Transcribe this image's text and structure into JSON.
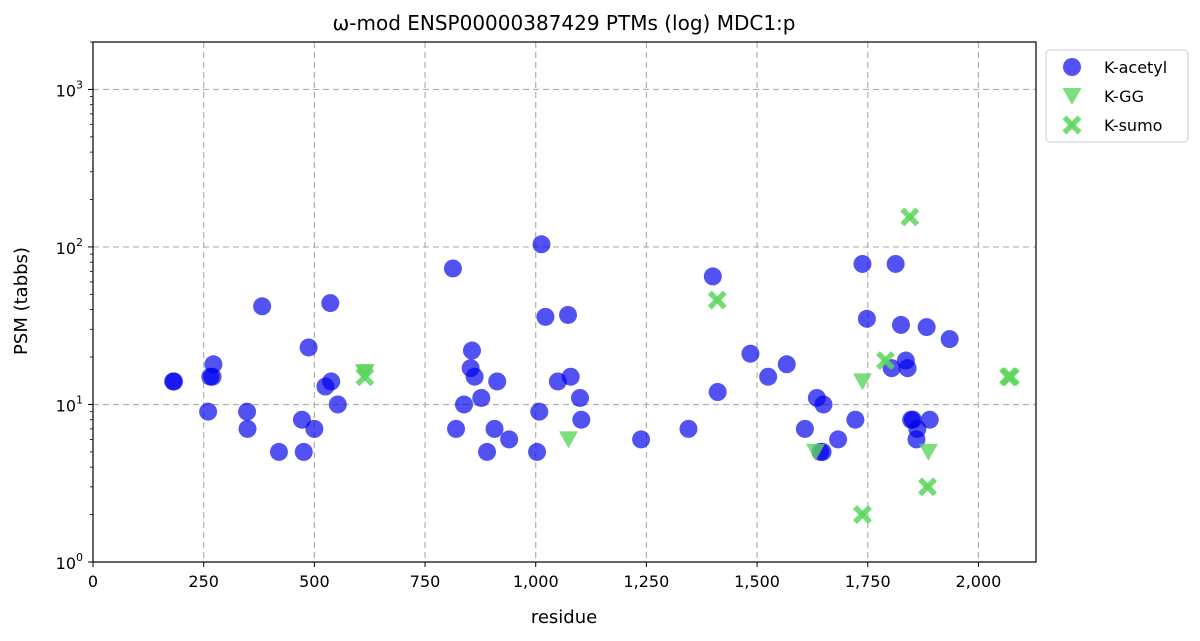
{
  "chart_data": {
    "type": "scatter",
    "title": "ω-mod ENSP00000387429 PTMs (log) MDC1:p",
    "xlabel": "residue",
    "ylabel": "PSM (tabbs)",
    "xlim": [
      0,
      2130
    ],
    "ylim": [
      1,
      2000
    ],
    "yscale": "log",
    "grid": true,
    "legend_position": "outside-top-right",
    "x_ticks": [
      {
        "value": 0,
        "label": "0"
      },
      {
        "value": 250,
        "label": "250"
      },
      {
        "value": 500,
        "label": "500"
      },
      {
        "value": 750,
        "label": "750"
      },
      {
        "value": 1000,
        "label": "1,000"
      },
      {
        "value": 1250,
        "label": "1,250"
      },
      {
        "value": 1500,
        "label": "1,500"
      },
      {
        "value": 1750,
        "label": "1,750"
      },
      {
        "value": 2000,
        "label": "2,000"
      }
    ],
    "y_ticks": [
      {
        "value": 1,
        "base": "10",
        "exp": "0"
      },
      {
        "value": 10,
        "base": "10",
        "exp": "1"
      },
      {
        "value": 100,
        "base": "10",
        "exp": "2"
      },
      {
        "value": 1000,
        "base": "10",
        "exp": "3"
      }
    ],
    "series": [
      {
        "name": "K-acetyl",
        "marker": "circle",
        "color": "#0000ee",
        "points": [
          [
            181,
            14
          ],
          [
            183,
            14
          ],
          [
            260,
            9
          ],
          [
            265,
            15
          ],
          [
            270,
            15
          ],
          [
            272,
            18
          ],
          [
            348,
            9
          ],
          [
            349,
            7
          ],
          [
            382,
            42
          ],
          [
            420,
            5
          ],
          [
            472,
            8
          ],
          [
            476,
            5
          ],
          [
            487,
            23
          ],
          [
            500,
            7
          ],
          [
            525,
            13
          ],
          [
            536,
            44
          ],
          [
            538,
            14
          ],
          [
            553,
            10
          ],
          [
            813,
            73
          ],
          [
            820,
            7
          ],
          [
            838,
            10
          ],
          [
            853,
            17
          ],
          [
            856,
            22
          ],
          [
            862,
            15
          ],
          [
            877,
            11
          ],
          [
            890,
            5
          ],
          [
            907,
            7
          ],
          [
            913,
            14
          ],
          [
            940,
            6
          ],
          [
            1003,
            5
          ],
          [
            1008,
            9
          ],
          [
            1013,
            104
          ],
          [
            1022,
            36
          ],
          [
            1050,
            14
          ],
          [
            1073,
            37
          ],
          [
            1079,
            15
          ],
          [
            1100,
            11
          ],
          [
            1103,
            8
          ],
          [
            1238,
            6
          ],
          [
            1345,
            7
          ],
          [
            1400,
            65
          ],
          [
            1411,
            12
          ],
          [
            1485,
            21
          ],
          [
            1525,
            15
          ],
          [
            1567,
            18
          ],
          [
            1608,
            7
          ],
          [
            1635,
            11
          ],
          [
            1643,
            5
          ],
          [
            1648,
            5
          ],
          [
            1650,
            10
          ],
          [
            1683,
            6
          ],
          [
            1722,
            8
          ],
          [
            1738,
            78
          ],
          [
            1748,
            35
          ],
          [
            1804,
            17
          ],
          [
            1813,
            78
          ],
          [
            1825,
            32
          ],
          [
            1836,
            19
          ],
          [
            1840,
            17
          ],
          [
            1848,
            8
          ],
          [
            1852,
            8
          ],
          [
            1860,
            6
          ],
          [
            1862,
            7
          ],
          [
            1883,
            31
          ],
          [
            1890,
            8
          ],
          [
            1935,
            26
          ]
        ]
      },
      {
        "name": "K-GG",
        "marker": "triangle-down",
        "color": "#5cd65c",
        "points": [
          [
            613,
            16
          ],
          [
            615,
            16
          ],
          [
            1074,
            6
          ],
          [
            1632,
            5
          ],
          [
            1738,
            14
          ],
          [
            1887,
            5
          ]
        ]
      },
      {
        "name": "K-sumo",
        "marker": "x",
        "color": "#5cd65c",
        "points": [
          [
            614,
            15
          ],
          [
            1410,
            46
          ],
          [
            1738,
            2
          ],
          [
            1790,
            19
          ],
          [
            1845,
            155
          ],
          [
            1885,
            3
          ],
          [
            2068,
            15
          ],
          [
            2072,
            15
          ]
        ]
      }
    ]
  }
}
